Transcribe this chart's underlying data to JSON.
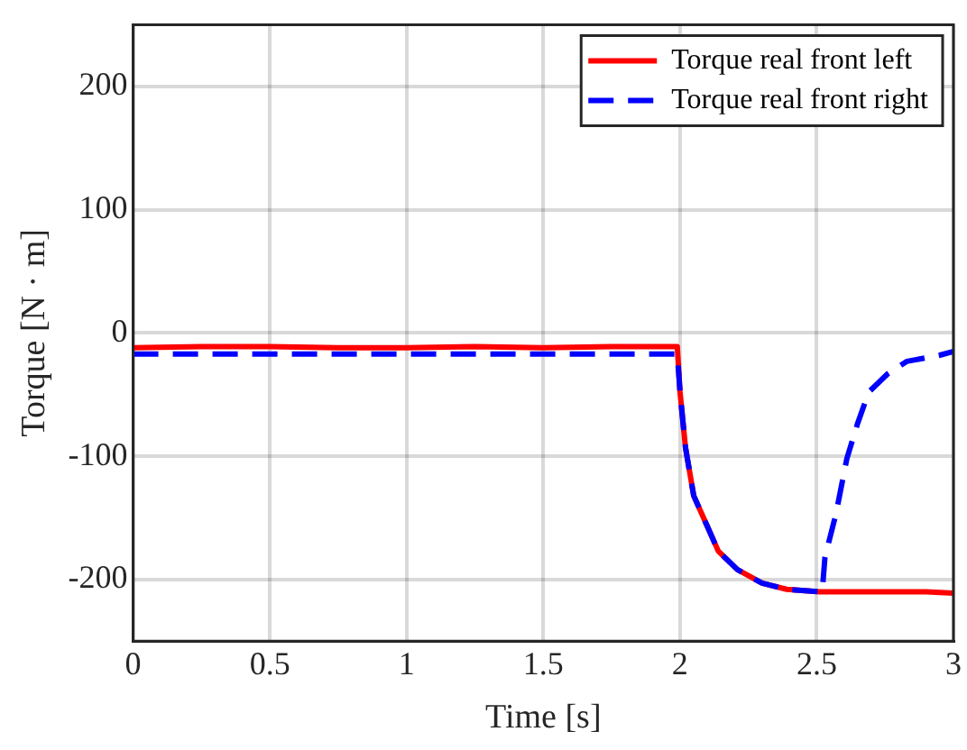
{
  "chart_data": {
    "type": "line",
    "xlabel": "Time [s]",
    "ylabel": "Torque [N · m]",
    "xlim": [
      0,
      3
    ],
    "xticks": [
      0,
      0.5,
      1,
      1.5,
      2,
      2.5,
      3
    ],
    "ylim": [
      -250,
      250
    ],
    "yticks": [
      -200,
      -100,
      0,
      100,
      200
    ],
    "grid": true,
    "legend": "top right",
    "marker": "none",
    "series": [
      {
        "name": "Torque real front left",
        "color": "#ff0000",
        "line_style": "solid",
        "x": [
          0,
          0.25,
          0.5,
          0.75,
          1,
          1.25,
          1.5,
          1.75,
          1.99,
          2,
          2.02,
          2.05,
          2.1,
          2.14,
          2.21,
          2.3,
          2.39,
          2.51,
          2.6,
          2.7,
          2.8,
          2.9,
          3
        ],
        "values": [
          -12,
          -11,
          -11,
          -12,
          -12,
          -11,
          -12,
          -11,
          -11,
          -48,
          -93,
          -132,
          -157,
          -177,
          -192,
          -203,
          -208,
          -210,
          -210,
          -210,
          -210,
          -210,
          -211
        ]
      },
      {
        "name": "Torque real front right",
        "color": "#0000ff",
        "line_style": "dashed",
        "x": [
          0,
          0.25,
          0.5,
          0.75,
          1,
          1.25,
          1.5,
          1.75,
          1.99,
          2,
          2.02,
          2.05,
          2.1,
          2.14,
          2.21,
          2.3,
          2.39,
          2.52,
          2.53,
          2.57,
          2.61,
          2.65,
          2.69,
          2.76,
          2.83,
          2.95,
          3
        ],
        "values": [
          -17,
          -17,
          -17,
          -17,
          -17,
          -17,
          -17,
          -17,
          -17,
          -48,
          -93,
          -132,
          -157,
          -177,
          -192,
          -203,
          -208,
          -210,
          -182,
          -147,
          -102,
          -73,
          -48,
          -33,
          -23,
          -18,
          -15
        ]
      }
    ]
  }
}
